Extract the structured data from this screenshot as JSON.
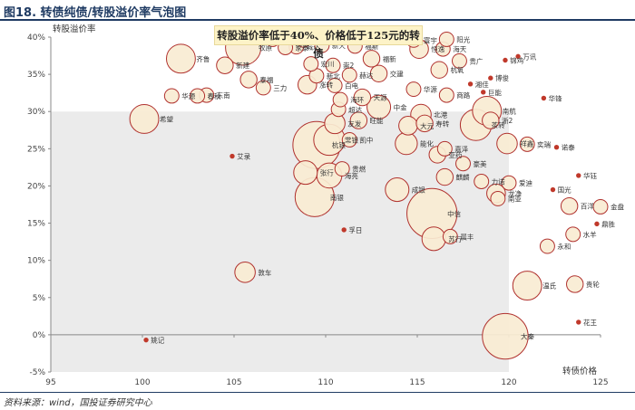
{
  "figure": {
    "title": "图18. 转债纯债/转股溢价率气泡图",
    "source": "资料来源：wind，国投证券研究中心",
    "callout": "转股溢价率低于40%、价格低于125元的转债",
    "highlight_fill": "#ebebeb",
    "bubble_fill": "#f8ecd3",
    "bubble_stroke": "#b0312e",
    "marker_fill": "#c0392b"
  },
  "chart_data": {
    "type": "scatter",
    "xlabel": "转债价格",
    "ylabel": "转股溢价率",
    "xlim": [
      95,
      125
    ],
    "ylim": [
      -5,
      40
    ],
    "xticks": [
      "95",
      "100",
      "105",
      "110",
      "115",
      "120",
      "125"
    ],
    "yticks": [
      "-5%",
      "0%",
      "5%",
      "10%",
      "15%",
      "20%",
      "25%",
      "30%",
      "35%",
      "40%"
    ],
    "grid": false,
    "highlight_region": {
      "x": [
        95,
        120
      ],
      "y": [
        -5,
        30
      ]
    },
    "points": [
      {
        "label": "姚记",
        "x": 100.2,
        "y": -0.7,
        "size": 2
      },
      {
        "label": "大秦",
        "x": 119.8,
        "y": -0.2,
        "size": 30
      },
      {
        "label": "花王",
        "x": 123.8,
        "y": 1.7,
        "size": 1
      },
      {
        "label": "温氏",
        "x": 121.0,
        "y": 6.6,
        "size": 12
      },
      {
        "label": "贵轮",
        "x": 123.6,
        "y": 6.8,
        "size": 4
      },
      {
        "label": "敦车",
        "x": 105.6,
        "y": 8.4,
        "size": 6
      },
      {
        "label": "永和",
        "x": 122.1,
        "y": 11.9,
        "size": 3
      },
      {
        "label": "水羊",
        "x": 123.5,
        "y": 13.5,
        "size": 3
      },
      {
        "label": "苏行",
        "x": 115.9,
        "y": 12.9,
        "size": 8
      },
      {
        "label": "晨丰",
        "x": 116.8,
        "y": 13.2,
        "size": 3
      },
      {
        "label": "孚日",
        "x": 111.0,
        "y": 14.1,
        "size": 2
      },
      {
        "label": "中信",
        "x": 115.8,
        "y": 16.3,
        "size": 36
      },
      {
        "label": "金盘",
        "x": 125.0,
        "y": 17.2,
        "size": 3
      },
      {
        "label": "百洋",
        "x": 123.3,
        "y": 17.3,
        "size": 4
      },
      {
        "label": "鼎胜",
        "x": 124.8,
        "y": 14.9,
        "size": 2
      },
      {
        "label": "南银",
        "x": 109.4,
        "y": 18.5,
        "size": 22
      },
      {
        "label": "成银",
        "x": 113.9,
        "y": 19.5,
        "size": 8
      },
      {
        "label": "龙净",
        "x": 119.3,
        "y": 19.0,
        "size": 5
      },
      {
        "label": "南亚",
        "x": 119.4,
        "y": 18.3,
        "size": 3
      },
      {
        "label": "国光",
        "x": 122.4,
        "y": 19.5,
        "size": 2
      },
      {
        "label": "爱迪",
        "x": 120.0,
        "y": 20.4,
        "size": 3
      },
      {
        "label": "力诺",
        "x": 118.5,
        "y": 20.6,
        "size": 3
      },
      {
        "label": "麒麟",
        "x": 116.5,
        "y": 21.2,
        "size": 4
      },
      {
        "label": "华钰",
        "x": 123.8,
        "y": 21.4,
        "size": 2
      },
      {
        "label": "海亮",
        "x": 110.2,
        "y": 21.4,
        "size": 9
      },
      {
        "label": "张行",
        "x": 108.9,
        "y": 21.8,
        "size": 8
      },
      {
        "label": "贵燃",
        "x": 110.9,
        "y": 22.3,
        "size": 3
      },
      {
        "label": "艾录",
        "x": 104.9,
        "y": 24.0,
        "size": 2
      },
      {
        "label": "杭银",
        "x": 109.5,
        "y": 25.5,
        "size": 32
      },
      {
        "label": "凯中",
        "x": 111.3,
        "y": 26.2,
        "size": 3
      },
      {
        "label": "常银",
        "x": 110.2,
        "y": 26.2,
        "size": 14
      },
      {
        "label": "能化",
        "x": 114.4,
        "y": 25.7,
        "size": 7
      },
      {
        "label": "嘉泽",
        "x": 116.5,
        "y": 25.0,
        "size": 3
      },
      {
        "label": "豪美",
        "x": 117.5,
        "y": 23.0,
        "size": 3
      },
      {
        "label": "亚药",
        "x": 116.1,
        "y": 24.2,
        "size": 4
      },
      {
        "label": "祥鑫",
        "x": 119.9,
        "y": 25.7,
        "size": 6
      },
      {
        "label": "奕瑞",
        "x": 121.0,
        "y": 25.6,
        "size": 3
      },
      {
        "label": "诺泰",
        "x": 122.6,
        "y": 25.2,
        "size": 2
      },
      {
        "label": "友发",
        "x": 110.5,
        "y": 28.4,
        "size": 6
      },
      {
        "label": "旺能",
        "x": 111.8,
        "y": 28.8,
        "size": 4
      },
      {
        "label": "大元",
        "x": 114.5,
        "y": 28.1,
        "size": 5
      },
      {
        "label": "寿转",
        "x": 115.4,
        "y": 28.4,
        "size": 4
      },
      {
        "label": "浙2",
        "x": 119.0,
        "y": 28.8,
        "size": 4
      },
      {
        "label": "茶转",
        "x": 118.2,
        "y": 28.2,
        "size": 14
      },
      {
        "label": "希望",
        "x": 100.1,
        "y": 29.0,
        "size": 12
      },
      {
        "label": "北港",
        "x": 115.2,
        "y": 29.6,
        "size": 6
      },
      {
        "label": "南航",
        "x": 118.8,
        "y": 30.1,
        "size": 12
      },
      {
        "label": "中金",
        "x": 112.9,
        "y": 30.6,
        "size": 8
      },
      {
        "label": "超达",
        "x": 110.7,
        "y": 30.3,
        "size": 3
      },
      {
        "label": "华锋",
        "x": 121.9,
        "y": 31.8,
        "size": 2
      },
      {
        "label": "海环",
        "x": 110.8,
        "y": 31.6,
        "size": 3
      },
      {
        "label": "天源",
        "x": 112.0,
        "y": 31.9,
        "size": 4
      },
      {
        "label": "东南",
        "x": 103.5,
        "y": 32.2,
        "size": 3
      },
      {
        "label": "春秋",
        "x": 103.0,
        "y": 32.1,
        "size": 3
      },
      {
        "label": "华源",
        "x": 101.6,
        "y": 32.1,
        "size": 3
      },
      {
        "label": "商路",
        "x": 116.6,
        "y": 32.2,
        "size": 3
      },
      {
        "label": "巨能",
        "x": 118.6,
        "y": 32.6,
        "size": 2
      },
      {
        "label": "三力",
        "x": 106.6,
        "y": 33.2,
        "size": 3
      },
      {
        "label": "涨转",
        "x": 109.0,
        "y": 33.6,
        "size": 5
      },
      {
        "label": "白电",
        "x": 110.5,
        "y": 33.5,
        "size": 3
      },
      {
        "label": "华源",
        "x": 114.8,
        "y": 33.0,
        "size": 3
      },
      {
        "label": "博俊",
        "x": 119.0,
        "y": 34.5,
        "size": 2
      },
      {
        "label": "湘佳",
        "x": 117.9,
        "y": 33.7,
        "size": 2
      },
      {
        "label": "泰福",
        "x": 105.8,
        "y": 34.3,
        "size": 4
      },
      {
        "label": "新北",
        "x": 109.5,
        "y": 34.8,
        "size": 3
      },
      {
        "label": "赫达",
        "x": 111.3,
        "y": 34.9,
        "size": 3
      },
      {
        "label": "交建",
        "x": 112.9,
        "y": 35.1,
        "size": 4
      },
      {
        "label": "杭氧",
        "x": 116.2,
        "y": 35.6,
        "size": 4
      },
      {
        "label": "万讯",
        "x": 120.5,
        "y": 37.4,
        "size": 2
      },
      {
        "label": "锦鸡",
        "x": 119.8,
        "y": 36.9,
        "size": 2
      },
      {
        "label": "贵广",
        "x": 117.3,
        "y": 36.8,
        "size": 3
      },
      {
        "label": "齐鲁",
        "x": 102.1,
        "y": 37.1,
        "size": 12
      },
      {
        "label": "新建",
        "x": 104.5,
        "y": 36.2,
        "size": 4
      },
      {
        "label": "牧原",
        "x": 105.5,
        "y": 38.6,
        "size": 18
      },
      {
        "label": "宏川",
        "x": 109.2,
        "y": 36.4,
        "size": 3
      },
      {
        "label": "崇2",
        "x": 110.4,
        "y": 36.2,
        "size": 3
      },
      {
        "label": "福新",
        "x": 112.5,
        "y": 37.1,
        "size": 4
      },
      {
        "label": "恒逸",
        "x": 115.1,
        "y": 38.4,
        "size": 5
      },
      {
        "label": "城达",
        "x": 108.4,
        "y": 38.7,
        "size": 3
      },
      {
        "label": "家泰",
        "x": 107.8,
        "y": 38.6,
        "size": 3
      },
      {
        "label": "海天",
        "x": 116.4,
        "y": 38.4,
        "size": 3
      },
      {
        "label": "新天",
        "x": 109.8,
        "y": 38.9,
        "size": 3
      },
      {
        "label": "阳光",
        "x": 116.6,
        "y": 39.7,
        "size": 3
      },
      {
        "label": "仁泰",
        "x": 108.8,
        "y": 39.6,
        "size": 3
      },
      {
        "label": "福斯",
        "x": 111.6,
        "y": 38.8,
        "size": 3
      },
      {
        "label": "丰华",
        "x": 107.1,
        "y": 39.7,
        "size": 3
      },
      {
        "label": "寰宇",
        "x": 114.8,
        "y": 39.6,
        "size": 3
      }
    ]
  }
}
